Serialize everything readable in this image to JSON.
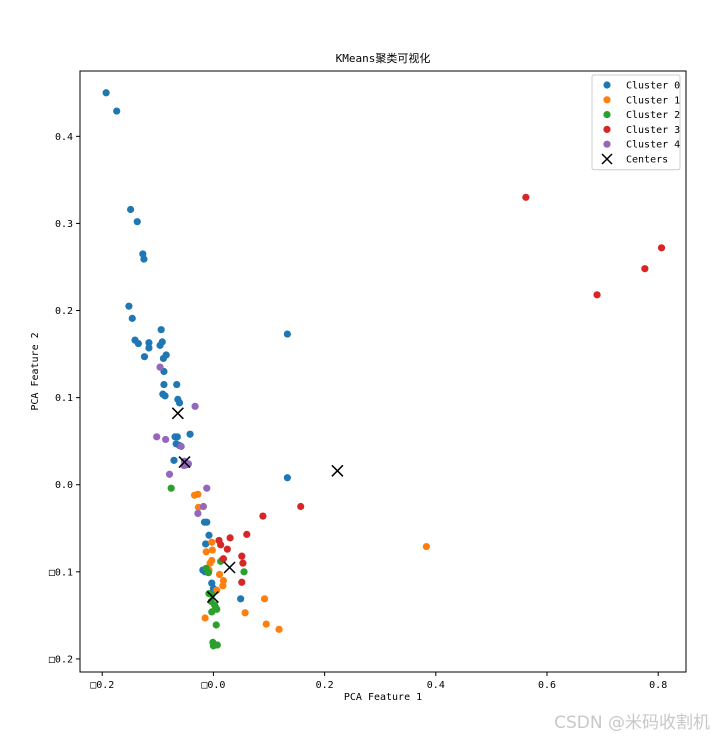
{
  "watermark": "CSDN @米码收割机",
  "chart_data": {
    "type": "scatter",
    "title": "KMeans聚类可视化",
    "xlabel": "PCA Feature 1",
    "ylabel": "PCA Feature 2",
    "xlim": [
      -0.24,
      0.85
    ],
    "ylim": [
      -0.215,
      0.475
    ],
    "xticks": [
      -0.2,
      0.0,
      0.2,
      0.4,
      0.6,
      0.8
    ],
    "xtick_labels": [
      "□0.2",
      "□0.0",
      "0.2",
      "0.4",
      "0.6",
      "0.8"
    ],
    "yticks": [
      -0.2,
      -0.1,
      0.0,
      0.1,
      0.2,
      0.3,
      0.4
    ],
    "ytick_labels": [
      "□0.2",
      "□0.1",
      "0.0",
      "0.1",
      "0.2",
      "0.3",
      "0.4"
    ],
    "grid": false,
    "legend_position": "top-right",
    "series": [
      {
        "name": "Cluster 0",
        "color": "#1f77b4",
        "points": [
          [
            -0.193,
            0.45
          ],
          [
            -0.174,
            0.429
          ],
          [
            -0.149,
            0.316
          ],
          [
            -0.137,
            0.302
          ],
          [
            -0.127,
            0.265
          ],
          [
            -0.125,
            0.259
          ],
          [
            -0.152,
            0.205
          ],
          [
            -0.146,
            0.191
          ],
          [
            -0.141,
            0.166
          ],
          [
            -0.135,
            0.162
          ],
          [
            -0.116,
            0.157
          ],
          [
            -0.116,
            0.163
          ],
          [
            -0.124,
            0.147
          ],
          [
            -0.094,
            0.178
          ],
          [
            -0.096,
            0.16
          ],
          [
            -0.092,
            0.164
          ],
          [
            -0.09,
            0.145
          ],
          [
            -0.085,
            0.149
          ],
          [
            -0.066,
            0.115
          ],
          [
            -0.089,
            0.13
          ],
          [
            -0.089,
            0.115
          ],
          [
            -0.087,
            0.102
          ],
          [
            -0.091,
            0.104
          ],
          [
            -0.064,
            0.098
          ],
          [
            -0.061,
            0.094
          ],
          [
            -0.065,
            0.055
          ],
          [
            -0.069,
            0.055
          ],
          [
            -0.042,
            0.058
          ],
          [
            -0.067,
            0.047
          ],
          [
            -0.061,
            0.045
          ],
          [
            -0.071,
            0.028
          ],
          [
            -0.048,
            0.023
          ],
          [
            0.133,
            0.173
          ],
          [
            0.133,
            0.008
          ],
          [
            -0.016,
            -0.043
          ],
          [
            -0.012,
            -0.043
          ],
          [
            -0.008,
            -0.058
          ],
          [
            -0.014,
            -0.068
          ],
          [
            -0.019,
            -0.098
          ],
          [
            -0.015,
            -0.1
          ],
          [
            -0.003,
            -0.113
          ],
          [
            0.0,
            -0.119
          ],
          [
            0.049,
            -0.131
          ]
        ]
      },
      {
        "name": "Cluster 1",
        "color": "#ff7f0e",
        "points": [
          [
            0.383,
            -0.071
          ],
          [
            -0.034,
            -0.012
          ],
          [
            -0.028,
            -0.011
          ],
          [
            -0.027,
            -0.026
          ],
          [
            -0.013,
            -0.077
          ],
          [
            -0.003,
            -0.066
          ],
          [
            -0.002,
            -0.075
          ],
          [
            -0.003,
            -0.087
          ],
          [
            -0.008,
            -0.098
          ],
          [
            0.011,
            -0.103
          ],
          [
            0.018,
            -0.11
          ],
          [
            0.017,
            -0.116
          ],
          [
            0.006,
            -0.121
          ],
          [
            0.016,
            -0.086
          ],
          [
            -0.006,
            -0.09
          ],
          [
            0.092,
            -0.131
          ],
          [
            0.057,
            -0.147
          ],
          [
            -0.015,
            -0.153
          ],
          [
            0.095,
            -0.16
          ],
          [
            0.118,
            -0.166
          ]
        ]
      },
      {
        "name": "Cluster 2",
        "color": "#2ca02c",
        "points": [
          [
            -0.076,
            -0.004
          ],
          [
            -0.013,
            -0.096
          ],
          [
            -0.009,
            -0.101
          ],
          [
            0.013,
            -0.088
          ],
          [
            0.055,
            -0.1
          ],
          [
            -0.008,
            -0.125
          ],
          [
            -0.003,
            -0.126
          ],
          [
            -0.004,
            -0.134
          ],
          [
            0.002,
            -0.138
          ],
          [
            0.004,
            -0.141
          ],
          [
            0.006,
            -0.143
          ],
          [
            -0.003,
            -0.146
          ],
          [
            0.005,
            -0.161
          ],
          [
            -0.001,
            -0.181
          ],
          [
            0.0,
            -0.185
          ],
          [
            0.007,
            -0.184
          ]
        ]
      },
      {
        "name": "Cluster 3",
        "color": "#d62728",
        "points": [
          [
            0.562,
            0.33
          ],
          [
            0.806,
            0.272
          ],
          [
            0.776,
            0.248
          ],
          [
            0.69,
            0.218
          ],
          [
            0.157,
            -0.025
          ],
          [
            0.089,
            -0.036
          ],
          [
            0.03,
            -0.061
          ],
          [
            0.06,
            -0.057
          ],
          [
            0.01,
            -0.064
          ],
          [
            0.013,
            -0.069
          ],
          [
            0.025,
            -0.074
          ],
          [
            0.051,
            -0.082
          ],
          [
            0.018,
            -0.085
          ],
          [
            0.053,
            -0.09
          ],
          [
            0.051,
            -0.112
          ]
        ]
      },
      {
        "name": "Cluster 4",
        "color": "#9467bd",
        "points": [
          [
            -0.096,
            0.135
          ],
          [
            -0.033,
            0.09
          ],
          [
            -0.102,
            0.055
          ],
          [
            -0.086,
            0.052
          ],
          [
            -0.058,
            0.044
          ],
          [
            -0.052,
            0.027
          ],
          [
            -0.045,
            0.024
          ],
          [
            -0.053,
            0.022
          ],
          [
            -0.079,
            0.012
          ],
          [
            -0.012,
            -0.004
          ],
          [
            -0.018,
            -0.025
          ],
          [
            -0.028,
            -0.033
          ]
        ]
      }
    ],
    "centers": {
      "name": "Centers",
      "color": "#000000",
      "points": [
        [
          -0.064,
          0.082
        ],
        [
          -0.052,
          0.026
        ],
        [
          0.223,
          0.016
        ],
        [
          0.029,
          -0.095
        ],
        [
          -0.001,
          -0.129
        ]
      ]
    }
  }
}
